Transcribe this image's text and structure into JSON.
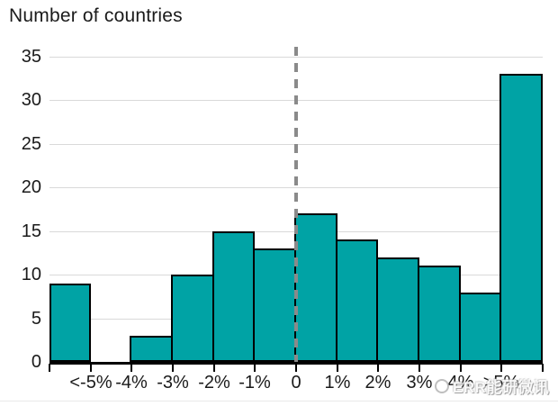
{
  "header": {
    "title": "Number of countries"
  },
  "chart_data": {
    "type": "bar",
    "subtype": "histogram",
    "title": "Number of countries",
    "ylabel": "Number of countries",
    "xlabel": "",
    "values": [
      9,
      0,
      3,
      10,
      15,
      13,
      17,
      14,
      12,
      11,
      8,
      33
    ],
    "bin_edge_labels": [
      "",
      "<-5%",
      "-4%",
      "-3%",
      "-2%",
      "-1%",
      "0",
      "1%",
      "2%",
      "3%",
      "4%",
      ">5%",
      ""
    ],
    "bins": [
      {
        "range": "< -5%",
        "count": 9
      },
      {
        "range": "-5% to -4%",
        "count": 0
      },
      {
        "range": "-4% to -3%",
        "count": 3
      },
      {
        "range": "-3% to -2%",
        "count": 10
      },
      {
        "range": "-2% to -1%",
        "count": 15
      },
      {
        "range": "-1% to 0",
        "count": 13
      },
      {
        "range": "0 to 1%",
        "count": 17
      },
      {
        "range": "1% to 2%",
        "count": 14
      },
      {
        "range": "2% to 3%",
        "count": 12
      },
      {
        "range": "3% to 4%",
        "count": 11
      },
      {
        "range": "4% to 5%",
        "count": 8
      },
      {
        "range": "> 5%",
        "count": 33
      }
    ],
    "yticks": [
      0,
      5,
      10,
      15,
      20,
      25,
      30,
      35
    ],
    "ylim": [
      0,
      35
    ],
    "grid": true,
    "legend": false,
    "zero_reference_line": {
      "at_label": "0",
      "edge_index": 6,
      "style": "dashed",
      "color": "#8a8a8a"
    },
    "colors": {
      "bar_fill": "#00a3a5",
      "bar_border": "#000000",
      "grid": "#d9d9d9",
      "axis": "#000000",
      "text": "#1a1a1a"
    }
  },
  "watermark": {
    "icon": "globe-icon",
    "text": "ERR能研微讯"
  }
}
